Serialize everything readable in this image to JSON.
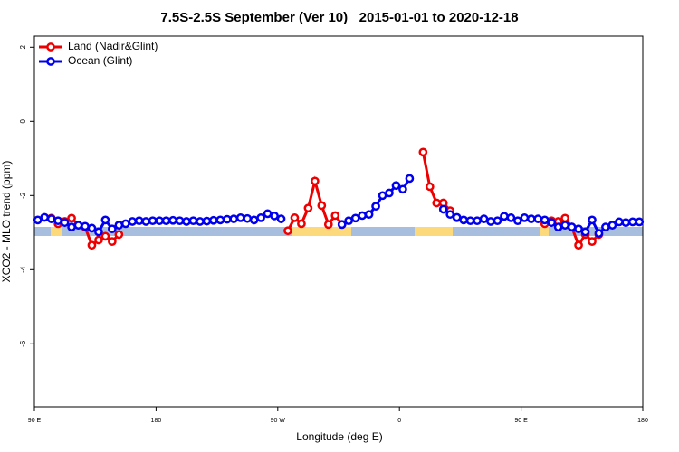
{
  "chart_data": {
    "type": "line",
    "title": "7.5S-2.5S September (Ver 10)   2015-01-01 to 2020-12-18",
    "x_label": "Longitude (deg E)",
    "y_label": "XCO2 - MLO trend (ppm)",
    "xlim": [
      90,
      540
    ],
    "xticks": [
      {
        "value": 90,
        "label": "90 E"
      },
      180,
      {
        "value": 270,
        "label": "90 W"
      },
      {
        "value": 360,
        "label": "0"
      },
      {
        "value": 450,
        "label": "90 E"
      },
      {
        "value": 540,
        "label": "180"
      }
    ],
    "ylim": [
      -7.7,
      2.3
    ],
    "yticks": [
      2,
      0,
      -2,
      -4,
      -6
    ],
    "legend": "top-left",
    "x": [
      92.5,
      97.5,
      102.5,
      107.5,
      112.5,
      117.5,
      122.5,
      127.5,
      132.5,
      137.5,
      142.5,
      147.5,
      152.5,
      157.5,
      162.5,
      167.5,
      172.5,
      177.5,
      182.5,
      187.5,
      192.5,
      197.5,
      202.5,
      207.5,
      212.5,
      217.5,
      222.5,
      227.5,
      232.5,
      237.5,
      242.5,
      247.5,
      252.5,
      257.5,
      262.5,
      267.5,
      272.5,
      277.5,
      282.5,
      287.5,
      292.5,
      297.5,
      302.5,
      307.5,
      312.5,
      317.5,
      322.5,
      327.5,
      332.5,
      337.5,
      342.5,
      347.5,
      352.5,
      357.5,
      362.5,
      367.5,
      372.5,
      377.5,
      382.5,
      387.5,
      392.5,
      397.5,
      402.5,
      407.5,
      412.5,
      417.5,
      422.5,
      427.5,
      432.5,
      437.5,
      442.5,
      447.5,
      452.5,
      457.5,
      462.5,
      467.5,
      472.5,
      477.5,
      482.5,
      487.5,
      492.5,
      497.5,
      502.5,
      507.5,
      512.5,
      517.5,
      522.5,
      527.5,
      532.5,
      537.5
    ],
    "series": [
      {
        "name": "Land (Nadir&Glint)",
        "color": "#ee0000",
        "values": [
          null,
          null,
          -2.61,
          -2.76,
          -2.7,
          -2.61,
          -2.8,
          -2.85,
          -3.34,
          -3.2,
          -3.1,
          -3.24,
          -3.05,
          null,
          null,
          null,
          null,
          null,
          null,
          null,
          null,
          null,
          null,
          null,
          null,
          null,
          null,
          null,
          null,
          null,
          null,
          null,
          null,
          null,
          null,
          null,
          null,
          -2.95,
          -2.6,
          -2.76,
          -2.34,
          -1.61,
          -2.27,
          -2.78,
          -2.54,
          -2.78,
          null,
          null,
          null,
          null,
          null,
          null,
          null,
          null,
          null,
          null,
          null,
          -0.83,
          -1.76,
          -2.2,
          -2.2,
          -2.41,
          -2.6,
          null,
          null,
          null,
          null,
          null,
          null,
          null,
          null,
          null,
          null,
          null,
          null,
          -2.76,
          -2.68,
          -2.7,
          -2.61,
          -2.85,
          -3.34,
          -3.05,
          -3.24,
          -3.05,
          null,
          null,
          null,
          null,
          null,
          null
        ]
      },
      {
        "name": "Ocean (Glint)",
        "color": "#0000ee",
        "values": [
          -2.66,
          -2.59,
          -2.63,
          -2.68,
          -2.73,
          -2.85,
          -2.8,
          -2.83,
          -2.88,
          -2.98,
          -2.66,
          -2.9,
          -2.8,
          -2.76,
          -2.7,
          -2.68,
          -2.7,
          -2.68,
          -2.68,
          -2.68,
          -2.67,
          -2.68,
          -2.7,
          -2.68,
          -2.7,
          -2.69,
          -2.67,
          -2.66,
          -2.64,
          -2.63,
          -2.6,
          -2.62,
          -2.66,
          -2.6,
          -2.49,
          -2.55,
          -2.63,
          null,
          null,
          null,
          null,
          null,
          null,
          null,
          null,
          -2.78,
          -2.68,
          -2.61,
          -2.54,
          -2.51,
          -2.29,
          -2.0,
          -1.93,
          -1.73,
          -1.83,
          -1.54,
          null,
          null,
          null,
          null,
          -2.37,
          -2.51,
          -2.59,
          -2.66,
          -2.68,
          -2.68,
          -2.63,
          -2.7,
          -2.68,
          -2.56,
          -2.6,
          -2.68,
          -2.6,
          -2.63,
          -2.63,
          -2.66,
          -2.73,
          -2.85,
          -2.8,
          -2.85,
          -2.9,
          -2.98,
          -2.66,
          -3.02,
          -2.85,
          -2.8,
          -2.71,
          -2.73,
          -2.71,
          -2.71
        ]
      }
    ]
  }
}
